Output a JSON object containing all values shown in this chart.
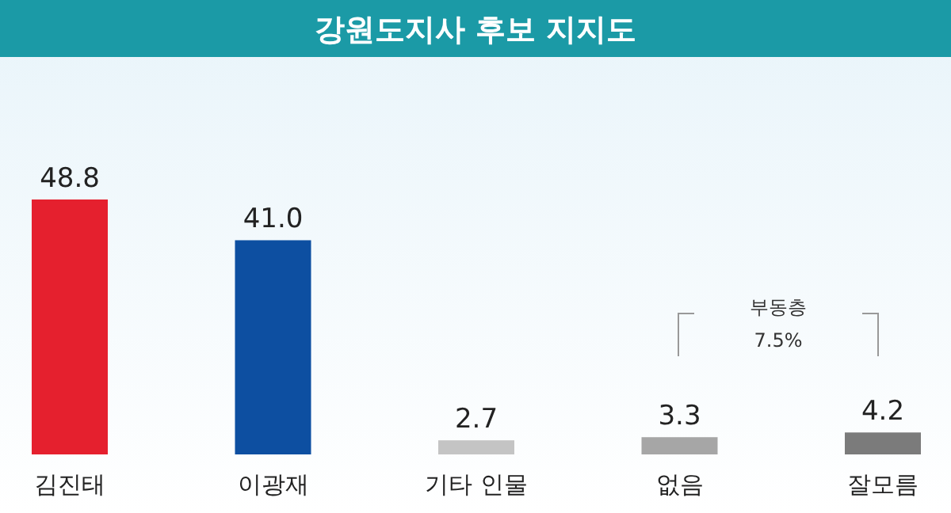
{
  "chart_data": {
    "type": "bar",
    "title": "강원도지사 후보 지지도",
    "categories": [
      "김진태",
      "이광재",
      "기타 인물",
      "없음",
      "잘모름"
    ],
    "values": [
      48.8,
      41.0,
      2.7,
      3.3,
      4.2
    ],
    "colors": [
      "#e5202e",
      "#0d4fa1",
      "#c4c4c4",
      "#a6a6a6",
      "#7b7b7b"
    ],
    "value_labels": [
      "48.8",
      "41.0",
      "2.7",
      "3.3",
      "4.2"
    ],
    "annotations": [
      "부동층\n7.5%"
    ]
  }
}
